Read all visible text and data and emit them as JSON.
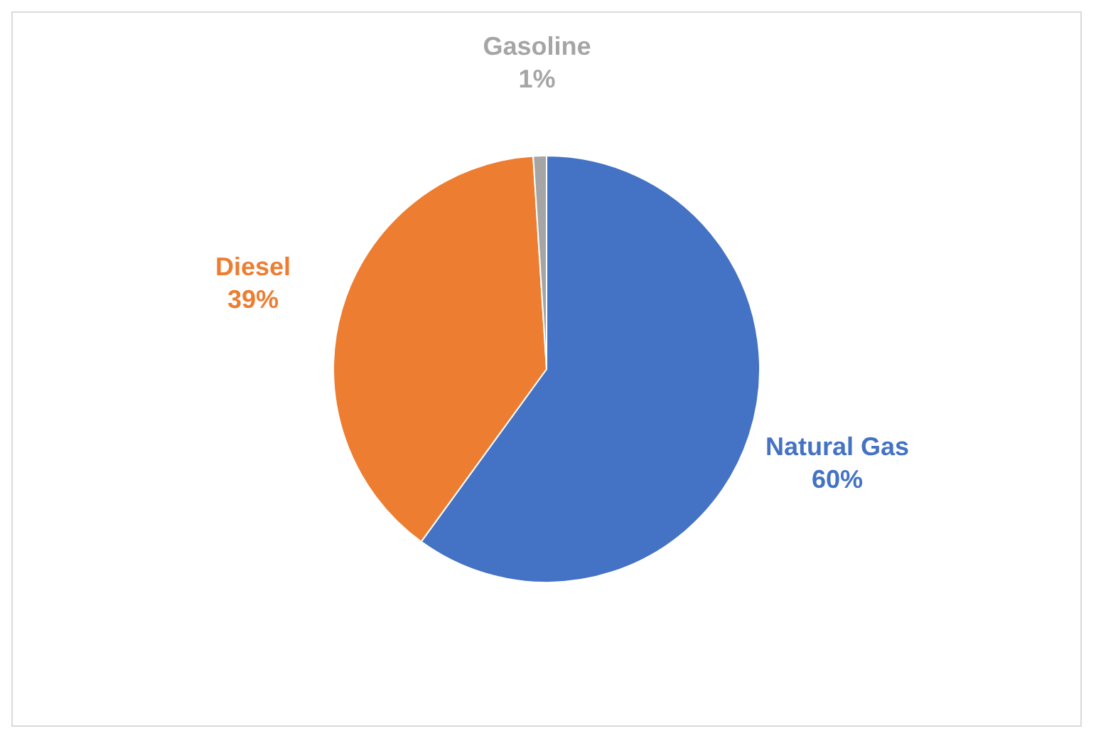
{
  "chart_data": {
    "type": "pie",
    "categories": [
      "Natural Gas",
      "Diesel",
      "Gasoline"
    ],
    "values": [
      60,
      39,
      1
    ],
    "colors": [
      "#4472c4",
      "#ed7d31",
      "#a5a5a5"
    ],
    "value_labels": [
      "60%",
      "39%",
      "1%"
    ],
    "legend": false
  }
}
